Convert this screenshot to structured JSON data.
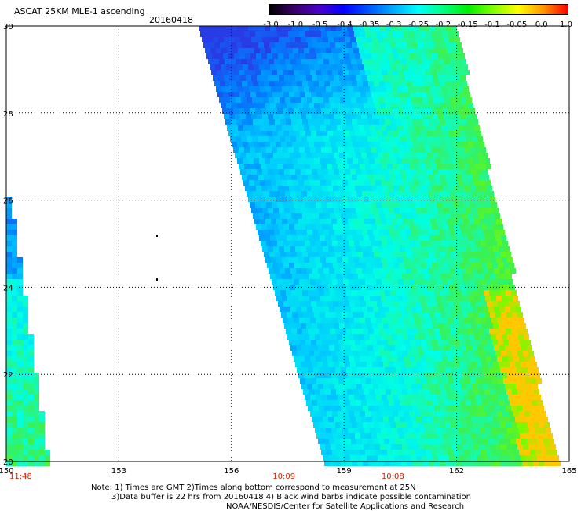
{
  "header": {
    "title": "ASCAT 25KM MLE-1 ascending",
    "date": "20160418"
  },
  "colorbar": {
    "labels": [
      "-3.0",
      "-1.0",
      "-0.5",
      "-0.4",
      "-0.35",
      "-0.3",
      "-0.25",
      "-0.2",
      "-0.15",
      "-0.1",
      "-0.05",
      "0.0",
      "1.0"
    ],
    "colors": [
      "#000000",
      "#3a0066",
      "#4b00c8",
      "#0000ff",
      "#0055ff",
      "#00aaff",
      "#00ffff",
      "#00ff80",
      "#00ee00",
      "#80ff00",
      "#ffff00",
      "#ff9900",
      "#ff0000"
    ]
  },
  "map": {
    "lon_ticks": [
      "150",
      "153",
      "156",
      "159",
      "162",
      "165"
    ],
    "lat_ticks": [
      "20",
      "22",
      "24",
      "26",
      "28",
      "30"
    ],
    "lon_range": [
      150,
      165
    ],
    "lat_range": [
      20,
      30
    ],
    "pass_times": [
      {
        "label": "11:48",
        "lon": 150
      },
      {
        "label": "10:09",
        "lon": 157.4
      },
      {
        "label": "10:08",
        "lon": 160.3
      }
    ]
  },
  "notes": {
    "line1": "Note: 1) Times are GMT 2)Times along bottom correspond to measurement at 25N",
    "line2": "3)Data buffer is 22 hrs from 20160418 4) Black wind barbs indicate possible contamination",
    "line3": "NOAA/NESDIS/Center for Satellite Applications and Research"
  }
}
